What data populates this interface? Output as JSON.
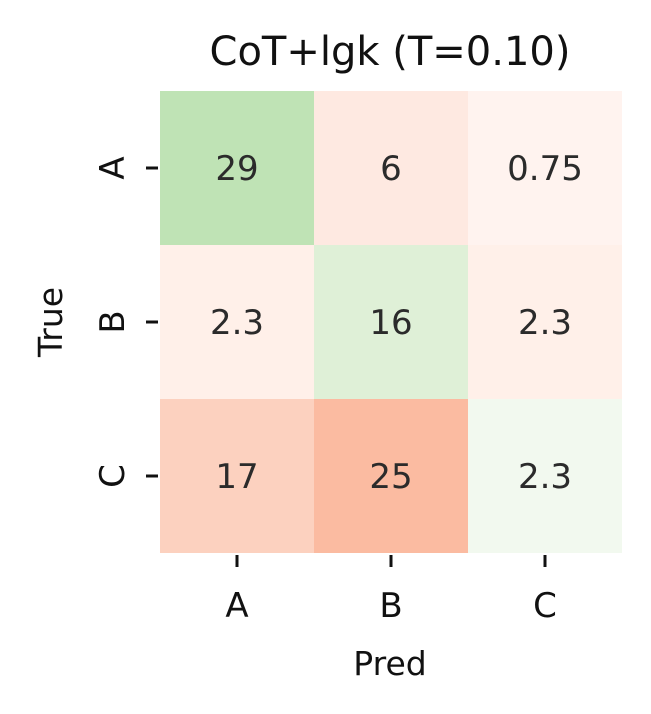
{
  "chart_data": {
    "type": "heatmap",
    "title": "CoT+lgk (T=0.10)",
    "xlabel": "Pred",
    "ylabel": "True",
    "x_categories": [
      "A",
      "B",
      "C"
    ],
    "y_categories": [
      "A",
      "B",
      "C"
    ],
    "values": [
      [
        29,
        6,
        0.75
      ],
      [
        2.3,
        16,
        2.3
      ],
      [
        17,
        25,
        2.3
      ]
    ],
    "value_labels": [
      [
        "29",
        "6",
        "0.75"
      ],
      [
        "2.3",
        "16",
        "2.3"
      ],
      [
        "17",
        "25",
        "2.3"
      ]
    ],
    "cell_colors": [
      [
        "#bfe3b5",
        "#fee9e1",
        "#fff3ef"
      ],
      [
        "#fff0e9",
        "#dff0d7",
        "#fff0e9"
      ],
      [
        "#fcd1bf",
        "#fbbba1",
        "#f2f9ef"
      ]
    ],
    "colorbar": false
  }
}
